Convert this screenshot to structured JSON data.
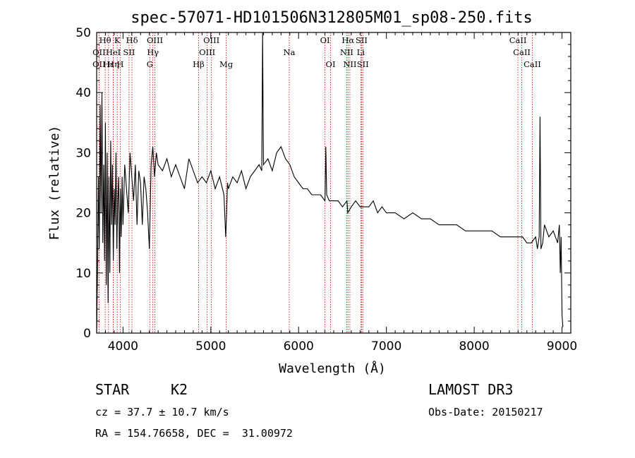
{
  "chart_data": {
    "type": "line",
    "title": "spec-57071-HD101506N312805M01_sp08-250.fits",
    "xlabel": "Wavelength (Å)",
    "ylabel": "Flux (relative)",
    "xlim": [
      3700,
      9100
    ],
    "ylim": [
      0,
      50
    ],
    "xticks": [
      4000,
      5000,
      6000,
      7000,
      8000,
      9000
    ],
    "yticks": [
      0,
      10,
      20,
      30,
      40,
      50
    ],
    "grid": false,
    "series": [
      {
        "x": [
          3700,
          3710,
          3720,
          3730,
          3740,
          3750,
          3760,
          3770,
          3780,
          3790,
          3800,
          3810,
          3820,
          3830,
          3840,
          3850,
          3860,
          3870,
          3880,
          3890,
          3900,
          3910,
          3920,
          3930,
          3940,
          3950,
          3960,
          3970,
          3980,
          3990,
          4000,
          4020,
          4040,
          4060,
          4080,
          4100,
          4120,
          4140,
          4160,
          4180,
          4200,
          4220,
          4240,
          4260,
          4280,
          4300,
          4320,
          4340,
          4360,
          4380,
          4400,
          4450,
          4500,
          4550,
          4600,
          4650,
          4700,
          4750,
          4800,
          4850,
          4900,
          4950,
          5000,
          5050,
          5100,
          5150,
          5170,
          5180,
          5190,
          5200,
          5250,
          5300,
          5350,
          5400,
          5450,
          5500,
          5550,
          5580,
          5590,
          5600,
          5650,
          5700,
          5750,
          5800,
          5850,
          5900,
          5950,
          6000,
          6050,
          6100,
          6150,
          6200,
          6250,
          6300,
          6310,
          6320,
          6350,
          6400,
          6450,
          6500,
          6550,
          6560,
          6600,
          6650,
          6700,
          6750,
          6800,
          6850,
          6900,
          6950,
          7000,
          7100,
          7200,
          7300,
          7400,
          7500,
          7600,
          7700,
          7800,
          7900,
          8000,
          8100,
          8200,
          8300,
          8400,
          8450,
          8500,
          8550,
          8600,
          8650,
          8700,
          8720,
          8740,
          8750,
          8760,
          8780,
          8800,
          8850,
          8900,
          8950,
          8970,
          8980,
          8990,
          9000,
          9010
        ],
        "y": [
          0,
          10,
          26,
          14,
          38,
          20,
          40,
          15,
          28,
          12,
          35,
          8,
          30,
          5,
          26,
          10,
          32,
          18,
          28,
          12,
          24,
          18,
          30,
          14,
          22,
          26,
          10,
          24,
          16,
          26,
          18,
          28,
          24,
          20,
          30,
          26,
          22,
          28,
          18,
          27,
          25,
          18,
          26,
          24,
          20,
          14,
          28,
          31,
          26,
          30,
          28,
          27,
          29,
          26,
          28,
          26,
          24,
          29,
          27,
          25,
          26,
          25,
          27,
          24,
          26,
          23,
          16,
          20,
          25,
          24,
          26,
          25,
          27,
          24,
          26,
          27,
          28,
          27,
          50,
          28,
          29,
          27,
          30,
          31,
          29,
          28,
          26,
          25,
          24,
          24,
          23,
          23,
          23,
          22,
          31,
          23,
          22,
          22,
          22,
          21,
          22,
          20,
          21,
          22,
          21,
          21,
          21,
          22,
          20,
          21,
          20,
          20,
          19,
          20,
          19,
          19,
          18,
          18,
          18,
          17,
          17,
          17,
          17,
          16,
          16,
          16,
          16,
          16,
          15,
          15,
          16,
          14,
          16,
          36,
          14,
          15,
          18,
          16,
          17,
          15,
          18,
          10,
          16,
          3,
          1
        ]
      }
    ],
    "spectral_lines": [
      {
        "name": "Hθ",
        "x": 3797,
        "row": 1
      },
      {
        "name": "OII",
        "x": 3727,
        "row": 2
      },
      {
        "name": "OII",
        "x": 3727,
        "row": 3
      },
      {
        "name": "Hε",
        "x": 3835,
        "row": 3
      },
      {
        "name": "Hη",
        "x": 3889,
        "row": 3
      },
      {
        "name": "HeI",
        "x": 3889,
        "row": 2
      },
      {
        "name": "K",
        "x": 3934,
        "row": 1
      },
      {
        "name": "H",
        "x": 3968,
        "row": 3
      },
      {
        "name": "SII",
        "x": 4069,
        "row": 2
      },
      {
        "name": "Hδ",
        "x": 4102,
        "row": 1
      },
      {
        "name": "OIII",
        "x": 4363,
        "row": 1
      },
      {
        "name": "Hγ",
        "x": 4340,
        "row": 2
      },
      {
        "name": "G",
        "x": 4305,
        "row": 3
      },
      {
        "name": "Hβ",
        "x": 4861,
        "row": 3
      },
      {
        "name": "OIII",
        "x": 5007,
        "row": 1
      },
      {
        "name": "OIII",
        "x": 4959,
        "row": 2
      },
      {
        "name": "Mg",
        "x": 5175,
        "row": 3
      },
      {
        "name": "Na",
        "x": 5893,
        "row": 2
      },
      {
        "name": "OI",
        "x": 6300,
        "row": 1
      },
      {
        "name": "OI",
        "x": 6364,
        "row": 3
      },
      {
        "name": "Hα",
        "x": 6563,
        "row": 1
      },
      {
        "name": "NII",
        "x": 6548,
        "row": 2
      },
      {
        "name": "NII",
        "x": 6584,
        "row": 3
      },
      {
        "name": "SII",
        "x": 6717,
        "row": 1
      },
      {
        "name": "Li",
        "x": 6708,
        "row": 2
      },
      {
        "name": "SII",
        "x": 6731,
        "row": 3
      },
      {
        "name": "CaII",
        "x": 8498,
        "row": 1
      },
      {
        "name": "CaII",
        "x": 8542,
        "row": 2
      },
      {
        "name": "CaII",
        "x": 8662,
        "row": 3
      }
    ],
    "line_marker_color": "#cc0000"
  },
  "info": {
    "class_label": "STAR",
    "subclass": "K2",
    "survey": "LAMOST DR3",
    "cz": "cz = 37.7 ± 10.7 km/s",
    "obs_date": "Obs-Date: 20150217",
    "coords": "RA = 154.76658, DEC =  31.00972"
  }
}
